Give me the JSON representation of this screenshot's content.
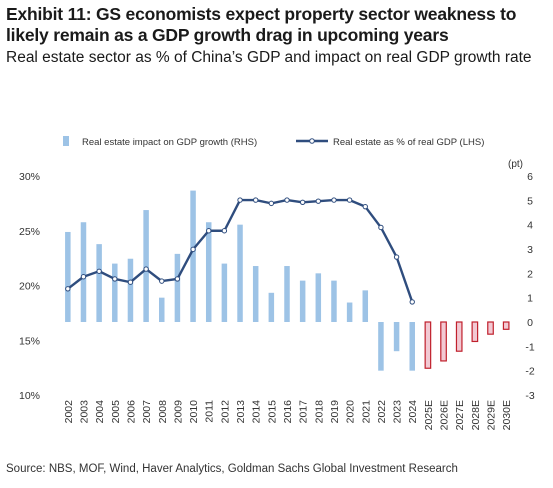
{
  "header": {
    "title": "Exhibit 11: GS economists expect property sector weakness to likely remain as a GDP growth drag in upcoming years",
    "subtitle": "Real estate sector as % of China’s GDP and impact on real GDP growth rate"
  },
  "footer": {
    "source": "Source: NBS, MOF, Wind, Haver Analytics, Goldman Sachs Global Investment Research"
  },
  "colors": {
    "bar_fill": "#9dc3e6",
    "forecast_fill": "#f2c9d3",
    "forecast_border": "#c0202c",
    "line": "#2f4d7e",
    "line_marker": "#ffffff"
  },
  "chart_data": {
    "type": "bar+line",
    "categories": [
      "2002",
      "2003",
      "2004",
      "2005",
      "2006",
      "2007",
      "2008",
      "2009",
      "2010",
      "2011",
      "2012",
      "2013",
      "2014",
      "2015",
      "2016",
      "2017",
      "2018",
      "2019",
      "2020",
      "2021",
      "2022",
      "2023",
      "2024",
      "2025E",
      "2026E",
      "2027E",
      "2028E",
      "2029E",
      "2030E"
    ],
    "bar_series": {
      "name": "Real estate impact on GDP growth (RHS)",
      "axis": "right",
      "values": [
        3.7,
        4.1,
        3.2,
        2.4,
        2.6,
        4.6,
        1.0,
        2.8,
        5.4,
        4.1,
        2.4,
        4.0,
        2.3,
        1.2,
        2.3,
        1.7,
        2.0,
        1.7,
        0.8,
        1.3,
        -2.0,
        -1.2,
        -2.0,
        -1.9,
        -1.6,
        -1.2,
        -0.8,
        -0.5,
        -0.3
      ]
    },
    "forecast_categories": [
      "2025E",
      "2026E",
      "2027E",
      "2028E",
      "2029E",
      "2030E"
    ],
    "line_series": {
      "name": "Real estate as % of real GDP  (LHS)",
      "axis": "left",
      "values": [
        19.7,
        20.8,
        21.3,
        20.6,
        20.3,
        21.5,
        20.4,
        20.6,
        23.3,
        25.0,
        25.0,
        27.8,
        27.8,
        27.5,
        27.8,
        27.6,
        27.7,
        27.8,
        27.8,
        27.2,
        25.3,
        22.6,
        18.5,
        null,
        null,
        null,
        null,
        null,
        null
      ]
    },
    "left_axis": {
      "ylim": [
        10,
        30
      ],
      "ticks": [
        "10%",
        "15%",
        "20%",
        "25%",
        "30%"
      ],
      "tick_values": [
        10,
        15,
        20,
        25,
        30
      ]
    },
    "right_axis": {
      "ylim": [
        -3,
        6
      ],
      "ticks": [
        "-3",
        "-2",
        "-1",
        "0",
        "1",
        "2",
        "3",
        "4",
        "5",
        "6"
      ],
      "tick_values": [
        -3,
        -2,
        -1,
        0,
        1,
        2,
        3,
        4,
        5,
        6
      ],
      "unit": "(pt)"
    },
    "legend_placement": "top",
    "grid": false
  }
}
